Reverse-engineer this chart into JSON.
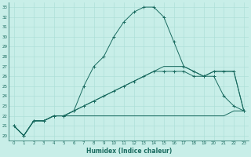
{
  "xlabel": "Humidex (Indice chaleur)",
  "bg_color": "#c8eee8",
  "grid_color": "#a8ddd6",
  "line_color": "#1a6b60",
  "xlim": [
    -0.5,
    23.5
  ],
  "ylim": [
    19.5,
    33.5
  ],
  "xticks": [
    0,
    1,
    2,
    3,
    4,
    5,
    6,
    7,
    8,
    9,
    10,
    11,
    12,
    13,
    14,
    15,
    16,
    17,
    18,
    19,
    20,
    21,
    22,
    23
  ],
  "yticks": [
    20,
    21,
    22,
    23,
    24,
    25,
    26,
    27,
    28,
    29,
    30,
    31,
    32,
    33
  ],
  "line1_x": [
    0,
    1,
    2,
    3,
    4,
    5,
    6,
    7,
    8,
    9,
    10,
    11,
    12,
    13,
    14,
    15,
    16,
    17,
    18,
    19,
    20,
    21,
    22,
    23
  ],
  "line1_y": [
    21.0,
    20.0,
    21.5,
    21.5,
    22.0,
    22.0,
    22.5,
    25.0,
    27.0,
    28.0,
    30.0,
    31.5,
    32.5,
    33.0,
    33.0,
    32.0,
    29.5,
    27.0,
    26.5,
    26.0,
    26.0,
    24.0,
    23.0,
    22.5
  ],
  "line2_x": [
    0,
    1,
    2,
    3,
    4,
    5,
    6,
    7,
    8,
    9,
    10,
    11,
    12,
    13,
    14,
    15,
    16,
    17,
    18,
    19,
    20,
    21,
    22,
    23
  ],
  "line2_y": [
    21.0,
    20.0,
    21.5,
    21.5,
    22.0,
    22.0,
    22.5,
    23.0,
    23.5,
    24.0,
    24.5,
    25.0,
    25.5,
    26.0,
    26.5,
    26.5,
    26.5,
    26.5,
    26.0,
    26.0,
    26.5,
    26.5,
    26.5,
    22.5
  ],
  "line3_x": [
    0,
    1,
    2,
    3,
    4,
    5,
    6,
    7,
    8,
    9,
    10,
    11,
    12,
    13,
    14,
    15,
    16,
    17,
    18,
    19,
    20,
    21,
    22,
    23
  ],
  "line3_y": [
    21.0,
    20.0,
    21.5,
    21.5,
    22.0,
    22.0,
    22.0,
    22.0,
    22.0,
    22.0,
    22.0,
    22.0,
    22.0,
    22.0,
    22.0,
    22.0,
    22.0,
    22.0,
    22.0,
    22.0,
    22.0,
    22.0,
    22.5,
    22.5
  ],
  "line4_x": [
    0,
    1,
    2,
    3,
    4,
    5,
    6,
    7,
    8,
    9,
    10,
    11,
    12,
    13,
    14,
    15,
    16,
    17,
    18,
    19,
    20,
    21,
    22,
    23
  ],
  "line4_y": [
    21.0,
    20.0,
    21.5,
    21.5,
    22.0,
    22.0,
    22.5,
    23.0,
    23.5,
    24.0,
    24.5,
    25.0,
    25.5,
    26.0,
    26.5,
    27.0,
    27.0,
    27.0,
    26.5,
    26.0,
    26.5,
    26.5,
    26.5,
    22.5
  ]
}
